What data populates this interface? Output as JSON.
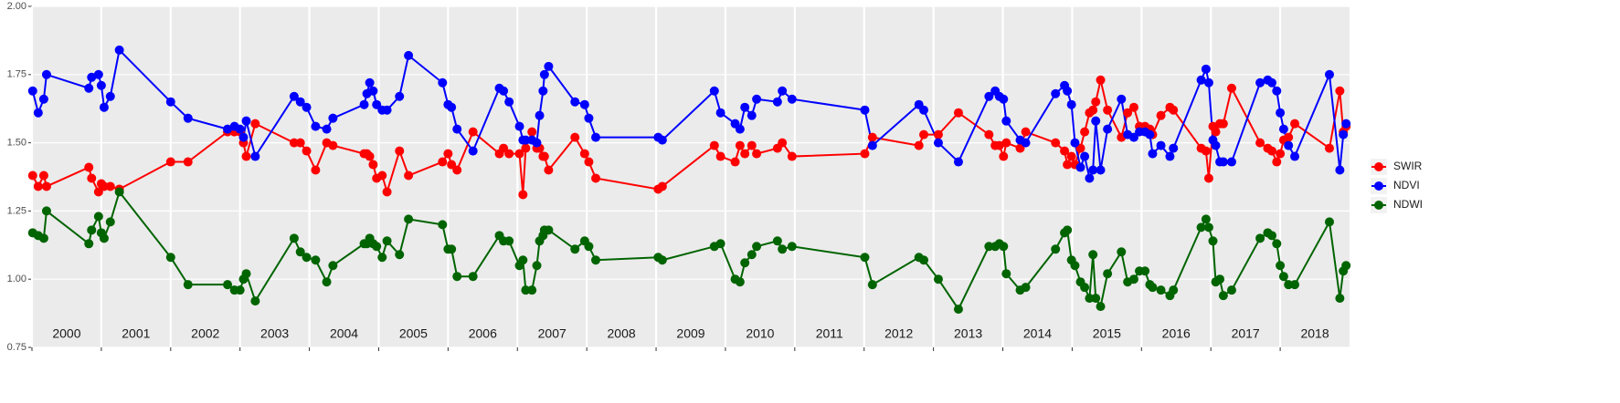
{
  "chart_data": {
    "type": "line",
    "x": [
      2000.01,
      2000.09,
      2000.17,
      2000.21,
      2000.82,
      2000.86,
      2000.96,
      2001.0,
      2001.04,
      2001.13,
      2001.26,
      2002.0,
      2002.25,
      2002.82,
      2002.92,
      2003.0,
      2003.05,
      2003.09,
      2003.22,
      2003.78,
      2003.87,
      2003.96,
      2004.09,
      2004.25,
      2004.34,
      2004.79,
      2004.83,
      2004.87,
      2004.92,
      2004.97,
      2005.05,
      2005.12,
      2005.3,
      2005.43,
      2005.92,
      2006.0,
      2006.05,
      2006.13,
      2006.36,
      2006.74,
      2006.8,
      2006.88,
      2007.03,
      2007.08,
      2007.12,
      2007.21,
      2007.28,
      2007.32,
      2007.37,
      2007.39,
      2007.45,
      2007.83,
      2007.97,
      2008.03,
      2008.13,
      2009.03,
      2009.09,
      2009.84,
      2009.93,
      2010.14,
      2010.21,
      2010.28,
      2010.38,
      2010.45,
      2010.75,
      2010.82,
      2010.96,
      2012.01,
      2012.12,
      2012.79,
      2012.86,
      2013.07,
      2013.36,
      2013.8,
      2013.89,
      2013.95,
      2014.01,
      2014.05,
      2014.25,
      2014.33,
      2014.76,
      2014.89,
      2014.93,
      2014.99,
      2015.04,
      2015.12,
      2015.18,
      2015.25,
      2015.3,
      2015.34,
      2015.41,
      2015.51,
      2015.71,
      2015.8,
      2015.89,
      2015.97,
      2016.05,
      2016.12,
      2016.16,
      2016.28,
      2016.41,
      2016.46,
      2016.86,
      2016.93,
      2016.97,
      2017.03,
      2017.07,
      2017.13,
      2017.18,
      2017.3,
      2017.71,
      2017.82,
      2017.88,
      2017.95,
      2018.0,
      2018.05,
      2018.12,
      2018.21,
      2018.71,
      2018.86,
      2018.91,
      2018.95
    ],
    "series": [
      {
        "name": "SWIR",
        "color": "#ff0000",
        "values": [
          1.38,
          1.34,
          1.38,
          1.34,
          1.41,
          1.37,
          1.32,
          1.35,
          1.34,
          1.34,
          1.33,
          1.43,
          1.43,
          1.54,
          1.54,
          1.54,
          1.5,
          1.45,
          1.57,
          1.5,
          1.5,
          1.47,
          1.4,
          1.5,
          1.49,
          1.46,
          1.46,
          1.45,
          1.42,
          1.37,
          1.38,
          1.32,
          1.47,
          1.38,
          1.43,
          1.46,
          1.42,
          1.4,
          1.54,
          1.46,
          1.48,
          1.46,
          1.46,
          1.31,
          1.48,
          1.54,
          1.48,
          1.48,
          1.45,
          1.45,
          1.4,
          1.52,
          1.46,
          1.43,
          1.37,
          1.33,
          1.34,
          1.49,
          1.45,
          1.43,
          1.49,
          1.46,
          1.49,
          1.46,
          1.48,
          1.5,
          1.45,
          1.46,
          1.52,
          1.49,
          1.53,
          1.53,
          1.61,
          1.53,
          1.49,
          1.49,
          1.45,
          1.5,
          1.48,
          1.54,
          1.5,
          1.47,
          1.42,
          1.45,
          1.42,
          1.48,
          1.54,
          1.61,
          1.62,
          1.65,
          1.73,
          1.62,
          1.52,
          1.61,
          1.63,
          1.56,
          1.56,
          1.55,
          1.53,
          1.6,
          1.63,
          1.62,
          1.48,
          1.47,
          1.37,
          1.56,
          1.54,
          1.57,
          1.57,
          1.7,
          1.5,
          1.48,
          1.47,
          1.43,
          1.46,
          1.51,
          1.52,
          1.57,
          1.48,
          1.69,
          1.54,
          1.56
        ]
      },
      {
        "name": "NDVI",
        "color": "#0000ff",
        "values": [
          1.69,
          1.61,
          1.66,
          1.75,
          1.7,
          1.74,
          1.75,
          1.71,
          1.63,
          1.67,
          1.84,
          1.65,
          1.59,
          1.55,
          1.56,
          1.55,
          1.52,
          1.58,
          1.45,
          1.67,
          1.65,
          1.63,
          1.56,
          1.55,
          1.59,
          1.64,
          1.68,
          1.72,
          1.69,
          1.64,
          1.62,
          1.62,
          1.67,
          1.82,
          1.72,
          1.64,
          1.63,
          1.55,
          1.47,
          1.7,
          1.69,
          1.65,
          1.56,
          1.51,
          1.51,
          1.51,
          1.5,
          1.6,
          1.69,
          1.75,
          1.78,
          1.65,
          1.64,
          1.59,
          1.52,
          1.52,
          1.51,
          1.69,
          1.61,
          1.57,
          1.55,
          1.63,
          1.6,
          1.66,
          1.65,
          1.69,
          1.66,
          1.62,
          1.49,
          1.64,
          1.62,
          1.5,
          1.43,
          1.67,
          1.69,
          1.67,
          1.66,
          1.58,
          1.51,
          1.5,
          1.68,
          1.71,
          1.69,
          1.64,
          1.5,
          1.41,
          1.45,
          1.37,
          1.4,
          1.58,
          1.4,
          1.55,
          1.66,
          1.53,
          1.52,
          1.54,
          1.54,
          1.53,
          1.46,
          1.49,
          1.45,
          1.48,
          1.73,
          1.77,
          1.72,
          1.51,
          1.49,
          1.43,
          1.43,
          1.43,
          1.72,
          1.73,
          1.72,
          1.69,
          1.61,
          1.55,
          1.49,
          1.45,
          1.75,
          1.4,
          1.53,
          1.57
        ]
      },
      {
        "name": "NDWI",
        "color": "#006400",
        "values": [
          1.17,
          1.16,
          1.15,
          1.25,
          1.13,
          1.18,
          1.23,
          1.17,
          1.15,
          1.21,
          1.32,
          1.08,
          0.98,
          0.98,
          0.96,
          0.96,
          1.0,
          1.02,
          0.92,
          1.15,
          1.1,
          1.08,
          1.07,
          0.99,
          1.05,
          1.13,
          1.13,
          1.15,
          1.13,
          1.12,
          1.08,
          1.14,
          1.09,
          1.22,
          1.2,
          1.11,
          1.11,
          1.01,
          1.01,
          1.16,
          1.14,
          1.14,
          1.05,
          1.07,
          0.96,
          0.96,
          1.05,
          1.14,
          1.16,
          1.18,
          1.18,
          1.11,
          1.14,
          1.12,
          1.07,
          1.08,
          1.07,
          1.12,
          1.13,
          1.0,
          0.99,
          1.06,
          1.09,
          1.12,
          1.14,
          1.11,
          1.12,
          1.08,
          0.98,
          1.08,
          1.07,
          1.0,
          0.89,
          1.12,
          1.12,
          1.13,
          1.12,
          1.02,
          0.96,
          0.97,
          1.11,
          1.17,
          1.18,
          1.07,
          1.05,
          0.99,
          0.97,
          0.93,
          1.09,
          0.93,
          0.9,
          1.02,
          1.1,
          0.99,
          1.0,
          1.03,
          1.03,
          0.98,
          0.97,
          0.96,
          0.94,
          0.96,
          1.19,
          1.22,
          1.19,
          1.14,
          0.99,
          1.0,
          0.94,
          0.96,
          1.15,
          1.17,
          1.16,
          1.13,
          1.05,
          1.01,
          0.98,
          0.98,
          1.21,
          0.93,
          1.03,
          1.05
        ]
      }
    ],
    "xlim": [
      2000,
      2019
    ],
    "xticks": [
      2000,
      2001,
      2002,
      2003,
      2004,
      2005,
      2006,
      2007,
      2008,
      2009,
      2010,
      2011,
      2012,
      2013,
      2014,
      2015,
      2016,
      2017,
      2018
    ],
    "ylim": [
      0.75,
      2.0
    ],
    "yticks": [
      0.75,
      {
        "value": 1.0,
        "label": "1.00"
      },
      {
        "value": 1.25,
        "label": "1.25"
      },
      {
        "value": 1.5,
        "label": "1.50"
      },
      {
        "value": 1.75,
        "label": "1.75"
      },
      {
        "value": 2.0,
        "label": "2.00"
      }
    ],
    "grid": true,
    "legend": "right"
  }
}
